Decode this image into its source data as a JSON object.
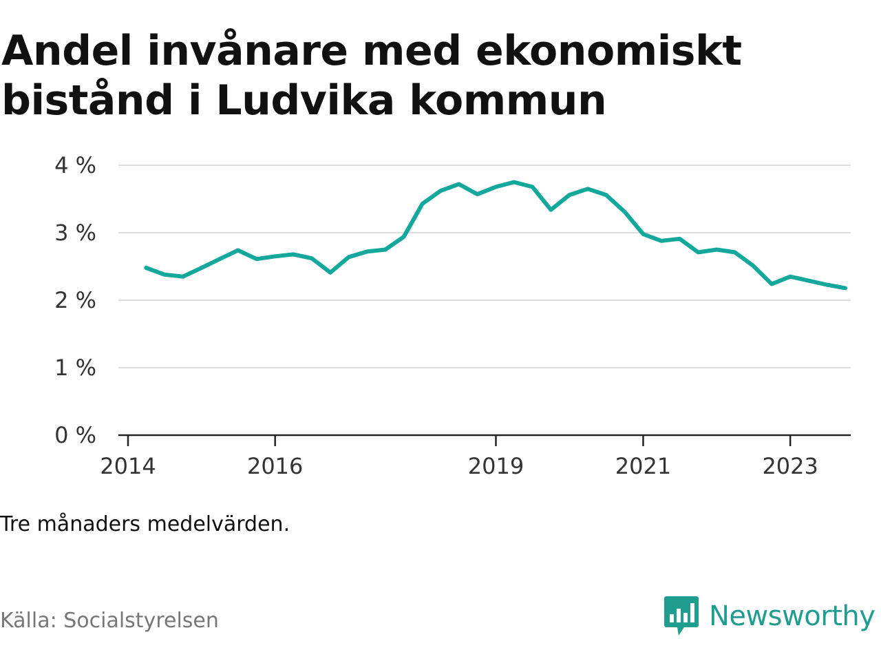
{
  "title": "Andel invånare med ekonomiskt bistånd i Ludvika kommun",
  "note": "Tre månaders medelvärden.",
  "source": "Källa: Socialstyrelsen",
  "brand": {
    "name": "Newsworthy",
    "icon": "chart-bubble-icon",
    "color": "#1f9d8f"
  },
  "chart_data": {
    "type": "line",
    "title": "Andel invånare med ekonomiskt bistånd i Ludvika kommun",
    "xlabel": "",
    "ylabel": "",
    "color": "#14a89c",
    "grid": true,
    "ylim": [
      0,
      4
    ],
    "yticks": [
      {
        "value": 0,
        "label": "0 %"
      },
      {
        "value": 1,
        "label": "1 %"
      },
      {
        "value": 2,
        "label": "2 %"
      },
      {
        "value": 3,
        "label": "3 %"
      },
      {
        "value": 4,
        "label": "4 %"
      }
    ],
    "xlim": [
      "2014-01-01",
      "2024-01-01"
    ],
    "xticks": [
      {
        "value": "2014-01-01",
        "label": "2014"
      },
      {
        "value": "2016-01-01",
        "label": "2016"
      },
      {
        "value": "2019-01-01",
        "label": "2019"
      },
      {
        "value": "2021-01-01",
        "label": "2021"
      },
      {
        "value": "2023-01-01",
        "label": "2023"
      }
    ],
    "series": [
      {
        "x": [
          "2014-04-01",
          "2014-07-01",
          "2014-10-01",
          "2015-01-01",
          "2015-04-01",
          "2015-07-01",
          "2015-10-01",
          "2016-01-01",
          "2016-04-01",
          "2016-07-01",
          "2016-10-01",
          "2017-01-01",
          "2017-04-01",
          "2017-07-01",
          "2017-10-01",
          "2018-01-01",
          "2018-04-01",
          "2018-07-01",
          "2018-10-01",
          "2019-01-01",
          "2019-04-01",
          "2019-07-01",
          "2019-10-01",
          "2020-01-01",
          "2020-04-01",
          "2020-07-01",
          "2020-10-01",
          "2021-01-01",
          "2021-04-01",
          "2021-07-01",
          "2021-10-01",
          "2022-01-01",
          "2022-04-01",
          "2022-07-01",
          "2022-10-01",
          "2023-01-01",
          "2023-04-01",
          "2023-07-01",
          "2023-10-01"
        ],
        "values": [
          2.48,
          2.38,
          2.35,
          2.48,
          2.61,
          2.74,
          2.61,
          2.65,
          2.68,
          2.62,
          2.41,
          2.64,
          2.72,
          2.75,
          2.94,
          3.43,
          3.62,
          3.72,
          3.57,
          3.68,
          3.75,
          3.68,
          3.34,
          3.56,
          3.65,
          3.56,
          3.31,
          2.98,
          2.88,
          2.91,
          2.71,
          2.75,
          2.71,
          2.51,
          2.24,
          2.35,
          2.29,
          2.23,
          2.18
        ]
      }
    ]
  }
}
